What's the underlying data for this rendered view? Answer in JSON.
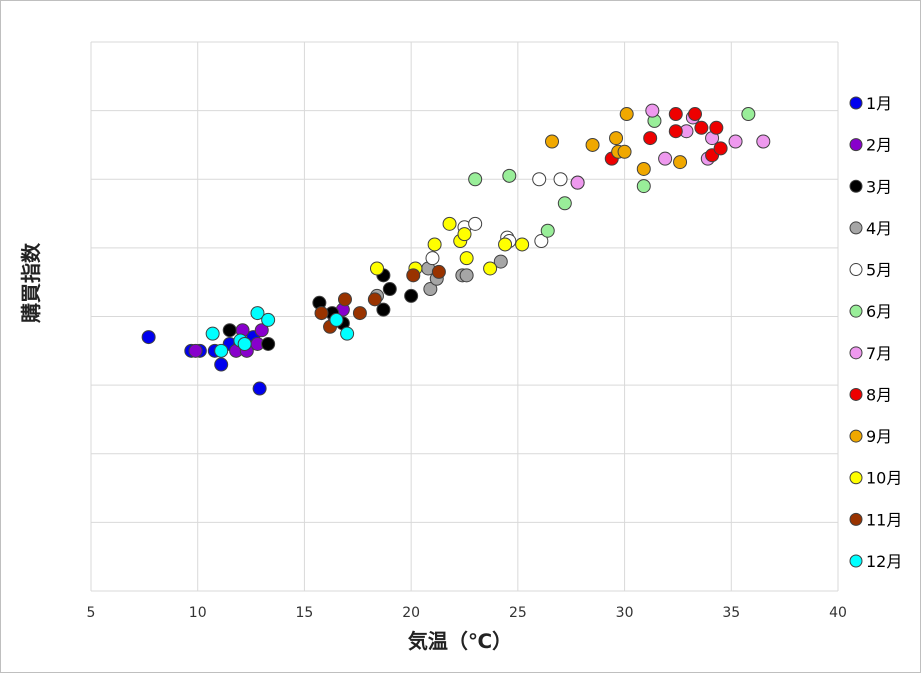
{
  "chart_data": {
    "type": "scatter",
    "xlabel": "気温（℃）",
    "ylabel": "購買指数",
    "xlim": [
      5,
      40
    ],
    "ylim": [
      0,
      8
    ],
    "xticks": [
      "5",
      "10",
      "15",
      "20",
      "25",
      "30",
      "35",
      "40"
    ],
    "grid": true,
    "legend_position": "right",
    "series": [
      {
        "name": "1月",
        "color": "#0000ee",
        "points": [
          [
            7.7,
            3.7
          ],
          [
            9.7,
            3.5
          ],
          [
            10.1,
            3.5
          ],
          [
            10.8,
            3.5
          ],
          [
            11.1,
            3.3
          ],
          [
            11.5,
            3.6
          ],
          [
            12.0,
            3.6
          ],
          [
            12.6,
            3.7
          ],
          [
            12.9,
            2.95
          ]
        ]
      },
      {
        "name": "2月",
        "color": "#8800cc",
        "points": [
          [
            9.9,
            3.5
          ],
          [
            11.8,
            3.5
          ],
          [
            12.1,
            3.8
          ],
          [
            12.3,
            3.5
          ],
          [
            12.8,
            3.6
          ],
          [
            13.0,
            3.8
          ],
          [
            16.4,
            4.0
          ],
          [
            16.8,
            4.1
          ]
        ]
      },
      {
        "name": "3月",
        "color": "#000000",
        "points": [
          [
            11.5,
            3.8
          ],
          [
            13.3,
            3.6
          ],
          [
            15.7,
            4.2
          ],
          [
            16.3,
            4.05
          ],
          [
            16.8,
            3.9
          ],
          [
            18.7,
            4.6
          ],
          [
            18.7,
            4.1
          ],
          [
            19.0,
            4.4
          ],
          [
            20.0,
            4.3
          ]
        ]
      },
      {
        "name": "4月",
        "color": "#a6a6a6",
        "points": [
          [
            18.4,
            4.3
          ],
          [
            20.8,
            4.7
          ],
          [
            20.9,
            4.4
          ],
          [
            21.2,
            4.55
          ],
          [
            22.4,
            4.6
          ],
          [
            22.6,
            4.6
          ],
          [
            24.2,
            4.8
          ]
        ]
      },
      {
        "name": "5月",
        "color": "#ffffff",
        "points": [
          [
            21.0,
            4.85
          ],
          [
            22.5,
            5.3
          ],
          [
            23.0,
            5.35
          ],
          [
            24.5,
            5.15
          ],
          [
            24.6,
            5.1
          ],
          [
            26.0,
            6.0
          ],
          [
            26.1,
            5.1
          ],
          [
            27.0,
            6.0
          ],
          [
            27.8,
            5.95
          ]
        ]
      },
      {
        "name": "6月",
        "color": "#99ee99",
        "points": [
          [
            23.0,
            6.0
          ],
          [
            24.6,
            6.05
          ],
          [
            26.4,
            5.25
          ],
          [
            27.2,
            5.65
          ],
          [
            30.9,
            5.9
          ],
          [
            31.4,
            6.85
          ],
          [
            35.8,
            6.95
          ]
        ]
      },
      {
        "name": "7月",
        "color": "#ee99ee",
        "points": [
          [
            27.8,
            5.95
          ],
          [
            31.3,
            7.0
          ],
          [
            31.9,
            6.3
          ],
          [
            32.9,
            6.7
          ],
          [
            33.2,
            6.9
          ],
          [
            33.9,
            6.3
          ],
          [
            34.1,
            6.6
          ],
          [
            35.2,
            6.55
          ],
          [
            36.5,
            6.55
          ]
        ]
      },
      {
        "name": "8月",
        "color": "#ee0000",
        "points": [
          [
            29.4,
            6.3
          ],
          [
            31.2,
            6.6
          ],
          [
            32.4,
            6.7
          ],
          [
            32.4,
            6.95
          ],
          [
            33.3,
            6.95
          ],
          [
            33.6,
            6.75
          ],
          [
            34.1,
            6.35
          ],
          [
            34.3,
            6.75
          ],
          [
            34.5,
            6.45
          ]
        ]
      },
      {
        "name": "9月",
        "color": "#f0a800",
        "points": [
          [
            26.6,
            6.55
          ],
          [
            28.5,
            6.5
          ],
          [
            29.6,
            6.6
          ],
          [
            29.7,
            6.4
          ],
          [
            30.0,
            6.4
          ],
          [
            30.1,
            6.95
          ],
          [
            30.9,
            6.15
          ],
          [
            32.6,
            6.25
          ]
        ]
      },
      {
        "name": "10月",
        "color": "#ffff00",
        "points": [
          [
            18.4,
            4.7
          ],
          [
            20.2,
            4.7
          ],
          [
            21.1,
            5.05
          ],
          [
            21.8,
            5.35
          ],
          [
            22.3,
            5.1
          ],
          [
            22.5,
            5.2
          ],
          [
            22.6,
            4.85
          ],
          [
            23.7,
            4.7
          ],
          [
            24.4,
            5.05
          ],
          [
            25.2,
            5.05
          ]
        ]
      },
      {
        "name": "11月",
        "color": "#993300",
        "points": [
          [
            15.8,
            4.05
          ],
          [
            16.2,
            3.85
          ],
          [
            16.9,
            4.25
          ],
          [
            17.6,
            4.05
          ],
          [
            18.3,
            4.25
          ],
          [
            20.1,
            4.6
          ],
          [
            21.3,
            4.65
          ]
        ]
      },
      {
        "name": "12月",
        "color": "#00ffff",
        "points": [
          [
            10.7,
            3.75
          ],
          [
            11.1,
            3.5
          ],
          [
            12.0,
            3.65
          ],
          [
            12.2,
            3.6
          ],
          [
            12.8,
            4.05
          ],
          [
            13.3,
            3.95
          ],
          [
            16.5,
            3.95
          ],
          [
            17.0,
            3.75
          ]
        ]
      }
    ]
  }
}
